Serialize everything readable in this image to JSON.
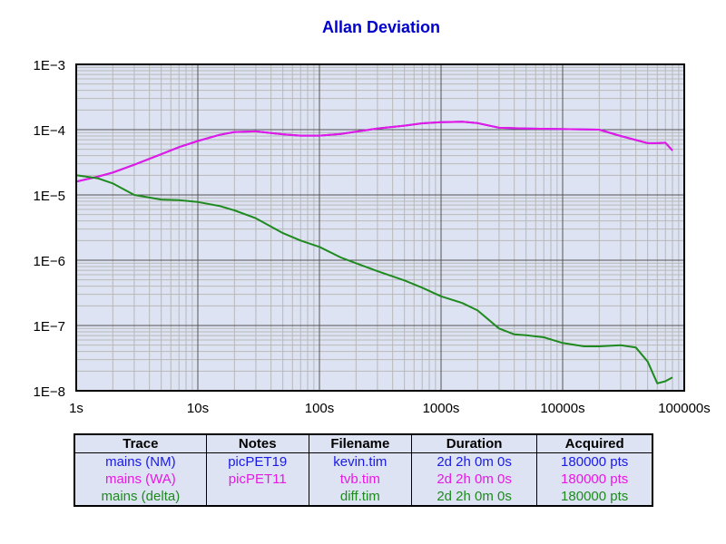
{
  "chart_data": {
    "type": "line",
    "title": "Allan Deviation",
    "x_scale": "log",
    "y_scale": "log",
    "xlim": [
      1,
      100000
    ],
    "ylim": [
      1e-08,
      0.001
    ],
    "grid": true,
    "x_tick_labels": [
      "1s",
      "10s",
      "100s",
      "1000s",
      "10000s",
      "100000s"
    ],
    "y_tick_labels": [
      "1E−3",
      "1E−4",
      "1E−5",
      "1E−6",
      "1E−7",
      "1E−8"
    ],
    "series": [
      {
        "name": "mains (NM)",
        "color": "#1a1ae6",
        "x": [
          1,
          1.5,
          2,
          3,
          5,
          7,
          10,
          15,
          20,
          30,
          50,
          70,
          100,
          150,
          200,
          300,
          500,
          700,
          1000,
          1500,
          2000,
          3000,
          5000,
          10000,
          20000,
          30000,
          50000,
          60000,
          70000,
          80000
        ],
        "y": [
          1.6e-05,
          1.9e-05,
          2.2e-05,
          2.9e-05,
          4.2e-05,
          5.4e-05,
          6.7e-05,
          8.3e-05,
          9.2e-05,
          9.4e-05,
          8.5e-05,
          8.1e-05,
          8.1e-05,
          8.6e-05,
          9.3e-05,
          0.000104,
          0.000115,
          0.000125,
          0.00013,
          0.000132,
          0.000126,
          0.000107,
          0.000104,
          0.000102,
          0.0001,
          8e-05,
          6.2e-05,
          6.2e-05,
          6.3e-05,
          4.8e-05
        ]
      },
      {
        "name": "mains (WA)",
        "color": "#e619e6",
        "x": [
          1,
          1.5,
          2,
          3,
          5,
          7,
          10,
          15,
          20,
          30,
          50,
          70,
          100,
          150,
          200,
          300,
          500,
          700,
          1000,
          1500,
          2000,
          3000,
          5000,
          10000,
          20000,
          30000,
          50000,
          60000,
          70000,
          80000
        ],
        "y": [
          1.6e-05,
          1.9e-05,
          2.2e-05,
          2.9e-05,
          4.2e-05,
          5.4e-05,
          6.7e-05,
          8.3e-05,
          9.2e-05,
          9.4e-05,
          8.5e-05,
          8.1e-05,
          8.1e-05,
          8.6e-05,
          9.3e-05,
          0.000104,
          0.000115,
          0.000125,
          0.00013,
          0.000132,
          0.000126,
          0.000107,
          0.000104,
          0.000102,
          0.0001,
          8e-05,
          6.2e-05,
          6.2e-05,
          6.3e-05,
          4.8e-05
        ]
      },
      {
        "name": "mains (delta)",
        "color": "#1f8a1f",
        "x": [
          1,
          1.5,
          2,
          3,
          5,
          7,
          10,
          15,
          20,
          30,
          50,
          70,
          100,
          150,
          200,
          300,
          500,
          700,
          1000,
          1500,
          2000,
          3000,
          4000,
          5000,
          7000,
          10000,
          15000,
          20000,
          30000,
          40000,
          50000,
          60000,
          70000,
          80000
        ],
        "y": [
          2e-05,
          1.8e-05,
          1.5e-05,
          1e-05,
          8.5e-06,
          8.3e-06,
          7.8e-06,
          6.8e-06,
          5.8e-06,
          4.4e-06,
          2.6e-06,
          2e-06,
          1.6e-06,
          1.1e-06,
          9e-07,
          6.8e-07,
          4.9e-07,
          3.8e-07,
          2.8e-07,
          2.2e-07,
          1.7e-07,
          9e-08,
          7.3e-08,
          7.1e-08,
          6.6e-08,
          5.4e-08,
          4.8e-08,
          4.8e-08,
          5e-08,
          4.6e-08,
          2.8e-08,
          1.3e-08,
          1.4e-08,
          1.6e-08
        ]
      }
    ]
  },
  "legend_table": {
    "headers": [
      "Trace",
      "Notes",
      "Filename",
      "Duration",
      "Acquired"
    ],
    "rows": [
      {
        "color": "#1a1ae6",
        "cells": [
          "mains (NM)",
          "picPET19",
          "kevin.tim",
          "2d 2h 0m 0s",
          "180000 pts"
        ]
      },
      {
        "color": "#e619e6",
        "cells": [
          "mains (WA)",
          "picPET11",
          "tvb.tim",
          "2d 2h 0m 0s",
          "180000 pts"
        ]
      },
      {
        "color": "#1f8a1f",
        "cells": [
          "mains (delta)",
          "",
          "diff.tim",
          "2d 2h 0m 0s",
          "180000 pts"
        ]
      }
    ]
  },
  "colors": {
    "plot_background": "#dde3f2",
    "title": "#0000cc"
  }
}
